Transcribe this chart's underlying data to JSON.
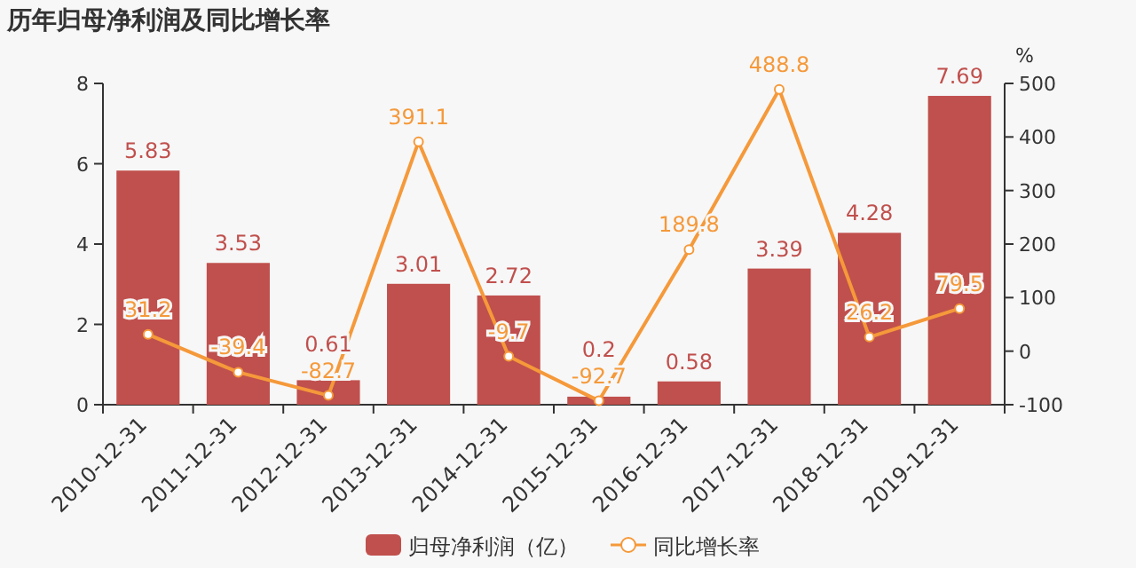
{
  "chart_data": {
    "type": "bar",
    "title": "历年归母净利润及同比增长率",
    "y2label": "%",
    "categories": [
      "2010-12-31",
      "2011-12-31",
      "2012-12-31",
      "2013-12-31",
      "2014-12-31",
      "2015-12-31",
      "2016-12-31",
      "2017-12-31",
      "2018-12-31",
      "2019-12-31"
    ],
    "series": [
      {
        "name": "归母净利润（亿）",
        "color": "#c0504d",
        "values": [
          5.83,
          3.53,
          0.61,
          3.01,
          2.72,
          0.2,
          0.58,
          3.39,
          4.28,
          7.69
        ]
      },
      {
        "name": "同比增长率",
        "type": "line",
        "axis": "y2",
        "color": "#f5993a",
        "marker": "circle",
        "values": [
          31.2,
          -39.4,
          -82.7,
          391.1,
          -9.7,
          -92.7,
          189.8,
          488.8,
          26.2,
          79.5
        ]
      }
    ],
    "ylim": [
      0,
      8
    ],
    "yticks": [
      0,
      2,
      4,
      6,
      8
    ],
    "y2lim": [
      -100,
      500
    ],
    "y2ticks": [
      -100,
      0,
      100,
      200,
      300,
      400,
      500
    ],
    "data_labels": true,
    "legend": "bottom",
    "grid": false
  }
}
